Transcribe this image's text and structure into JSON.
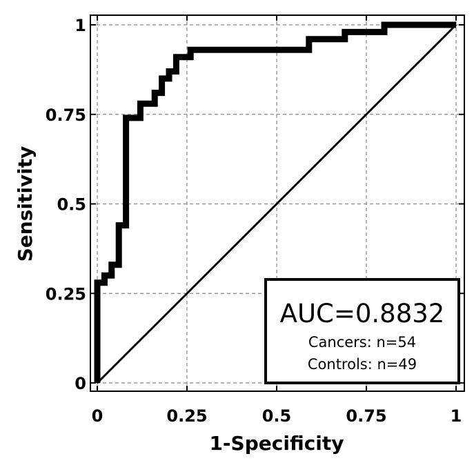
{
  "chart_data": {
    "type": "line",
    "title": "",
    "xlabel": "1-Specificity",
    "ylabel": "Sensitivity",
    "xlim": [
      0,
      1
    ],
    "ylim": [
      0,
      1
    ],
    "grid": true,
    "x_ticks": [
      0,
      0.25,
      0.5,
      0.75,
      1
    ],
    "y_ticks": [
      0,
      0.25,
      0.5,
      0.75,
      1
    ],
    "x_tick_labels": [
      "0",
      "0.25",
      "0.5",
      "0.75",
      "1"
    ],
    "y_tick_labels": [
      "0",
      "0.25",
      "0.5",
      "0.75",
      "1"
    ],
    "series": [
      {
        "style": "thick",
        "x": [
          0,
          0,
          0.02,
          0.02,
          0.04,
          0.04,
          0.06,
          0.06,
          0.08,
          0.08,
          0.12,
          0.12,
          0.16,
          0.16,
          0.18,
          0.18,
          0.2,
          0.2,
          0.22,
          0.22,
          0.26,
          0.26,
          0.59,
          0.59,
          0.69,
          0.69,
          0.8,
          0.8,
          1.0
        ],
        "y": [
          0,
          0.28,
          0.28,
          0.3,
          0.3,
          0.33,
          0.33,
          0.44,
          0.44,
          0.74,
          0.74,
          0.78,
          0.78,
          0.81,
          0.81,
          0.85,
          0.85,
          0.87,
          0.87,
          0.91,
          0.91,
          0.93,
          0.93,
          0.96,
          0.96,
          0.98,
          0.98,
          1.0,
          1.0
        ]
      },
      {
        "style": "thin",
        "x": [
          0,
          1
        ],
        "y": [
          0,
          1
        ]
      }
    ],
    "legend": {
      "placement": "bottom-right",
      "auc_text": "AUC=0.8832",
      "cancers_text": "Cancers: n=54",
      "controls_text": "Controls: n=49"
    }
  }
}
